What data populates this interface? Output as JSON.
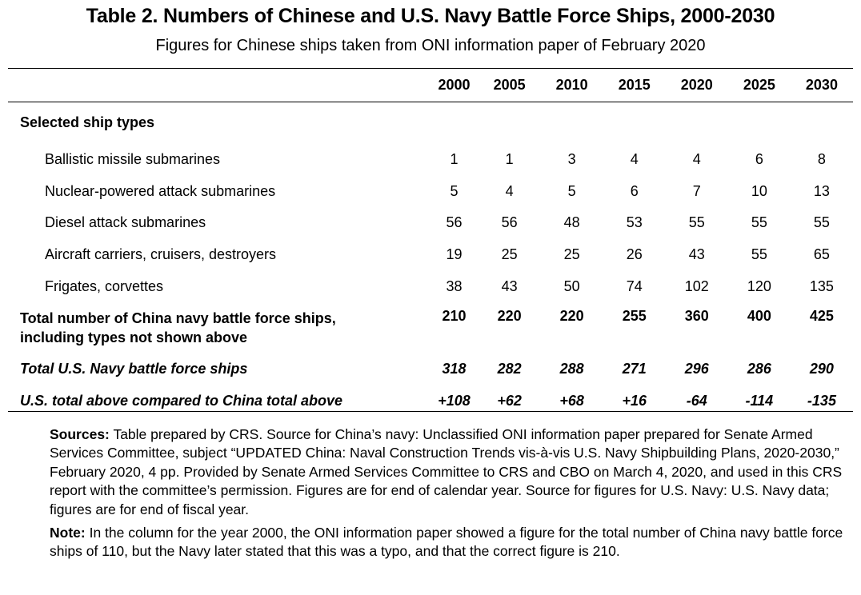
{
  "title": "Table 2. Numbers of Chinese and U.S. Navy Battle Force Ships, 2000-2030",
  "subtitle": "Figures for Chinese ships taken from ONI information paper of February 2020",
  "table": {
    "years": [
      "2000",
      "2005",
      "2010",
      "2015",
      "2020",
      "2025",
      "2030"
    ],
    "section_label": "Selected ship types",
    "ship_rows": [
      {
        "label": "Ballistic missile submarines",
        "values": [
          "1",
          "1",
          "3",
          "4",
          "4",
          "6",
          "8"
        ]
      },
      {
        "label": "Nuclear-powered attack submarines",
        "values": [
          "5",
          "4",
          "5",
          "6",
          "7",
          "10",
          "13"
        ]
      },
      {
        "label": "Diesel attack submarines",
        "values": [
          "56",
          "56",
          "48",
          "53",
          "55",
          "55",
          "55"
        ]
      },
      {
        "label": "Aircraft carriers, cruisers, destroyers",
        "values": [
          "19",
          "25",
          "25",
          "26",
          "43",
          "55",
          "65"
        ]
      },
      {
        "label": "Frigates, corvettes",
        "values": [
          "38",
          "43",
          "50",
          "74",
          "102",
          "120",
          "135"
        ]
      }
    ],
    "china_total": {
      "label_line1": "Total number of China navy battle force ships,",
      "label_line2": "including types not shown above",
      "values": [
        "210",
        "220",
        "220",
        "255",
        "360",
        "400",
        "425"
      ]
    },
    "us_total": {
      "label": "Total U.S. Navy battle force ships",
      "values": [
        "318",
        "282",
        "288",
        "271",
        "296",
        "286",
        "290"
      ]
    },
    "comparison": {
      "label": "U.S. total above compared to China total above",
      "values": [
        "+108",
        "+62",
        "+68",
        "+16",
        "-64",
        "-114",
        "-135"
      ]
    }
  },
  "notes": {
    "sources_lead": "Sources:",
    "sources_text": "Table prepared by CRS. Source for China’s navy: Unclassified ONI information paper prepared for Senate Armed Services Committee, subject “UPDATED China: Naval Construction Trends vis-à-vis U.S. Navy Shipbuilding Plans, 2020-2030,” February 2020, 4 pp. Provided by Senate Armed Services Committee to CRS and CBO on March 4, 2020, and used in this CRS report with the committee’s permission. Figures are for end of calendar year. Source for figures for U.S. Navy: U.S. Navy data; figures are for end of fiscal year.",
    "note_lead": "Note:",
    "note_text": "In the column for the year 2000, the ONI information paper showed a figure for the total number of China navy battle force ships of 110, but the Navy later stated that this was a typo, and that the correct figure is 210."
  }
}
